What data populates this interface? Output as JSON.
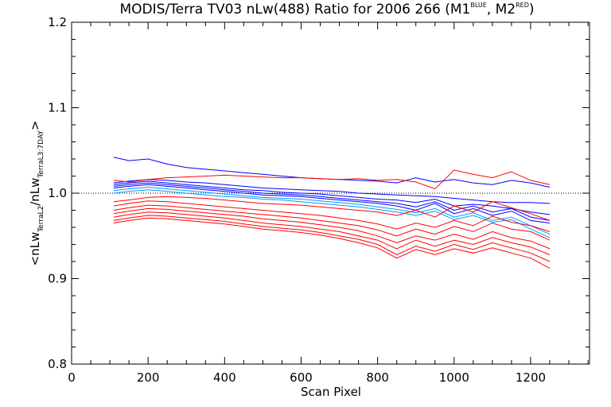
{
  "chart_data": {
    "type": "line",
    "title": {
      "main": "MODIS/Terra TV03 nLw(488) Ratio for 2006 266 (M1",
      "sup1": "BLUE",
      "mid": ", M2",
      "sup2": "RED",
      "end": ")"
    },
    "xlabel": "Scan Pixel",
    "ylabel": {
      "p1": "<nLw",
      "s1": "TerraL2",
      "p2": "/nLw",
      "s2": "TerraL3:7DAY",
      "p3": ">"
    },
    "xlim": [
      0,
      1354
    ],
    "ylim": [
      0.8,
      1.2
    ],
    "xticks": [
      0,
      200,
      400,
      600,
      800,
      1000,
      1200
    ],
    "yticks": [
      0.8,
      0.9,
      1.0,
      1.1,
      1.2
    ],
    "xtick_labels": [
      "0",
      "200",
      "400",
      "600",
      "800",
      "1000",
      "1200"
    ],
    "ytick_labels": [
      "0.8",
      "0.9",
      "1.0",
      "1.1",
      "1.2"
    ],
    "reference_line": {
      "y": 1.0,
      "style": "dotted"
    },
    "grid": false,
    "colors": {
      "M1": "#0000ff",
      "M2": "#ff0000",
      "M1_light": "#0099ff"
    },
    "x": [
      110,
      150,
      200,
      250,
      300,
      350,
      400,
      450,
      500,
      550,
      600,
      650,
      700,
      750,
      800,
      850,
      900,
      950,
      1000,
      1050,
      1100,
      1150,
      1200,
      1250
    ],
    "series": [
      {
        "color": "#0000ff",
        "values": [
          1.042,
          1.038,
          1.04,
          1.034,
          1.03,
          1.028,
          1.026,
          1.024,
          1.022,
          1.02,
          1.018,
          1.017,
          1.016,
          1.015,
          1.014,
          1.012,
          1.018,
          1.013,
          1.016,
          1.012,
          1.01,
          1.015,
          1.012,
          1.007
        ]
      },
      {
        "color": "#0000ff",
        "values": [
          1.012,
          1.014,
          1.016,
          1.015,
          1.013,
          1.012,
          1.01,
          1.008,
          1.006,
          1.005,
          1.004,
          1.003,
          1.002,
          1.0,
          0.999,
          0.998,
          0.997,
          0.996,
          0.994,
          0.992,
          0.99,
          0.989,
          0.989,
          0.988
        ]
      },
      {
        "color": "#0000ff",
        "values": [
          1.01,
          1.012,
          1.014,
          1.012,
          1.01,
          1.008,
          1.006,
          1.004,
          1.003,
          1.001,
          1.0,
          0.999,
          0.997,
          0.995,
          0.993,
          0.992,
          0.989,
          0.993,
          0.985,
          0.987,
          0.985,
          0.982,
          0.978,
          0.975
        ]
      },
      {
        "color": "#0000ff",
        "values": [
          1.008,
          1.01,
          1.012,
          1.01,
          1.008,
          1.006,
          1.004,
          1.002,
          1.0,
          0.999,
          0.998,
          0.996,
          0.994,
          0.992,
          0.99,
          0.988,
          0.984,
          0.99,
          0.98,
          0.985,
          0.978,
          0.982,
          0.972,
          0.968
        ]
      },
      {
        "color": "#0000ff",
        "values": [
          1.006,
          1.008,
          1.01,
          1.008,
          1.006,
          1.004,
          1.002,
          1.0,
          0.998,
          0.997,
          0.996,
          0.994,
          0.992,
          0.99,
          0.988,
          0.985,
          0.98,
          0.988,
          0.976,
          0.982,
          0.974,
          0.979,
          0.968,
          0.965
        ]
      },
      {
        "color": "#0099ff",
        "values": [
          1.003,
          1.005,
          1.007,
          1.005,
          1.003,
          1.001,
          0.999,
          0.997,
          0.995,
          0.994,
          0.993,
          0.991,
          0.989,
          0.987,
          0.984,
          0.981,
          0.977,
          0.982,
          0.972,
          0.977,
          0.968,
          0.972,
          0.962,
          0.952
        ]
      },
      {
        "color": "#0099ff",
        "values": [
          1.0,
          1.002,
          1.004,
          1.002,
          1.0,
          0.998,
          0.996,
          0.995,
          0.993,
          0.992,
          0.99,
          0.988,
          0.986,
          0.984,
          0.981,
          0.978,
          0.974,
          0.979,
          0.969,
          0.974,
          0.966,
          0.969,
          0.958,
          0.948
        ]
      },
      {
        "color": "#ff0000",
        "values": [
          1.015,
          1.013,
          1.016,
          1.018,
          1.019,
          1.02,
          1.021,
          1.02,
          1.019,
          1.018,
          1.018,
          1.017,
          1.016,
          1.017,
          1.015,
          1.016,
          1.013,
          1.005,
          1.027,
          1.022,
          1.018,
          1.025,
          1.015,
          1.01
        ]
      },
      {
        "color": "#ff0000",
        "values": [
          0.99,
          0.992,
          0.995,
          0.996,
          0.995,
          0.994,
          0.992,
          0.99,
          0.988,
          0.987,
          0.986,
          0.984,
          0.982,
          0.98,
          0.978,
          0.974,
          0.98,
          0.972,
          0.985,
          0.978,
          0.99,
          0.983,
          0.976,
          0.968
        ]
      },
      {
        "color": "#ff0000",
        "values": [
          0.985,
          0.988,
          0.991,
          0.99,
          0.988,
          0.986,
          0.984,
          0.982,
          0.98,
          0.978,
          0.976,
          0.974,
          0.971,
          0.968,
          0.964,
          0.958,
          0.965,
          0.96,
          0.968,
          0.962,
          0.973,
          0.966,
          0.962,
          0.955
        ]
      },
      {
        "color": "#ff0000",
        "values": [
          0.98,
          0.983,
          0.986,
          0.985,
          0.983,
          0.981,
          0.979,
          0.977,
          0.975,
          0.973,
          0.971,
          0.968,
          0.965,
          0.962,
          0.957,
          0.95,
          0.958,
          0.952,
          0.961,
          0.955,
          0.965,
          0.958,
          0.955,
          0.945
        ]
      },
      {
        "color": "#ff0000",
        "values": [
          0.976,
          0.979,
          0.982,
          0.981,
          0.979,
          0.977,
          0.975,
          0.973,
          0.97,
          0.968,
          0.966,
          0.963,
          0.96,
          0.956,
          0.95,
          0.942,
          0.95,
          0.945,
          0.952,
          0.946,
          0.955,
          0.948,
          0.944,
          0.935
        ]
      },
      {
        "color": "#ff0000",
        "values": [
          0.972,
          0.975,
          0.978,
          0.977,
          0.975,
          0.973,
          0.971,
          0.968,
          0.965,
          0.963,
          0.961,
          0.958,
          0.955,
          0.95,
          0.945,
          0.935,
          0.945,
          0.938,
          0.945,
          0.94,
          0.948,
          0.942,
          0.937,
          0.928
        ]
      },
      {
        "color": "#ff0000",
        "values": [
          0.968,
          0.971,
          0.974,
          0.973,
          0.971,
          0.969,
          0.967,
          0.964,
          0.961,
          0.959,
          0.957,
          0.954,
          0.95,
          0.946,
          0.94,
          0.928,
          0.938,
          0.932,
          0.94,
          0.934,
          0.942,
          0.936,
          0.93,
          0.92
        ]
      },
      {
        "color": "#ff0000",
        "values": [
          0.965,
          0.968,
          0.971,
          0.97,
          0.968,
          0.966,
          0.964,
          0.961,
          0.958,
          0.956,
          0.954,
          0.951,
          0.947,
          0.942,
          0.936,
          0.924,
          0.934,
          0.928,
          0.935,
          0.93,
          0.936,
          0.93,
          0.924,
          0.912
        ]
      }
    ]
  }
}
